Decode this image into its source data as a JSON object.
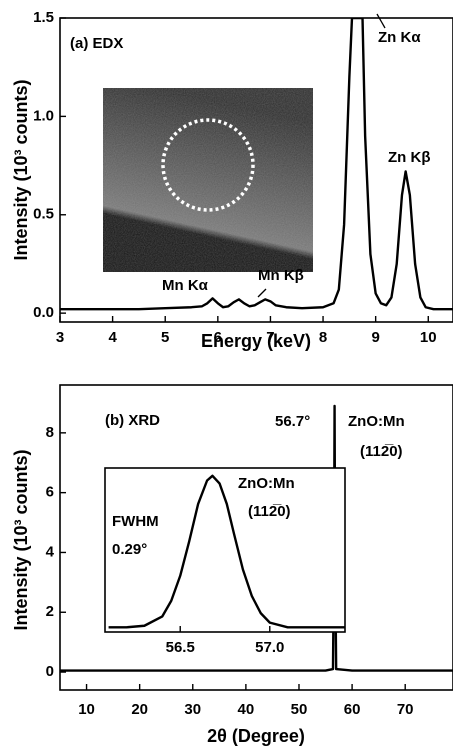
{
  "chart_data": [
    {
      "type": "line",
      "color": "#000000",
      "xlabel": "Energy (keV)",
      "ylabel": "Intensity (10³ counts)",
      "annotations": [
        "(a) EDX",
        "Zn Kα",
        "Zn Kβ",
        "Mn Kα",
        "Mn Kβ"
      ],
      "x": [
        3.0,
        3.5,
        4.0,
        4.5,
        5.0,
        5.5,
        5.7,
        5.8,
        5.9,
        6.0,
        6.1,
        6.2,
        6.3,
        6.4,
        6.5,
        6.6,
        6.7,
        6.8,
        6.9,
        7.0,
        7.1,
        7.3,
        7.6,
        8.0,
        8.2,
        8.3,
        8.4,
        8.5,
        8.55,
        8.75,
        8.8,
        8.9,
        9.0,
        9.1,
        9.2,
        9.3,
        9.4,
        9.5,
        9.57,
        9.65,
        9.75,
        9.85,
        9.95,
        10.1,
        10.47
      ],
      "values": [
        0.02,
        0.02,
        0.02,
        0.02,
        0.025,
        0.03,
        0.035,
        0.05,
        0.075,
        0.05,
        0.03,
        0.035,
        0.055,
        0.07,
        0.05,
        0.035,
        0.04,
        0.055,
        0.07,
        0.06,
        0.04,
        0.03,
        0.025,
        0.03,
        0.05,
        0.12,
        0.45,
        1.2,
        1.5,
        1.5,
        0.9,
        0.3,
        0.1,
        0.05,
        0.04,
        0.08,
        0.25,
        0.6,
        0.72,
        0.6,
        0.25,
        0.08,
        0.03,
        0.02,
        0.02
      ],
      "xlim": [
        3,
        10.47
      ],
      "ylim": [
        -0.045,
        1.5
      ],
      "xticks": [
        3,
        4,
        5,
        6,
        7,
        8,
        9,
        10
      ],
      "yticks": [
        {
          "value": 0,
          "label": "0.0"
        },
        {
          "value": 0.5,
          "label": "0.5"
        },
        {
          "value": 1,
          "label": "1.0"
        },
        {
          "value": 1.5,
          "label": "1.5"
        }
      ]
    },
    {
      "type": "line",
      "color": "#000000",
      "xlabel": "2θ (Degree)",
      "ylabel": "Intensity (10³ counts)",
      "annotations": [
        "(b) XRD",
        "56.7°",
        "ZnO:Mn",
        "(112̅0)"
      ],
      "x": [
        5,
        20,
        40,
        55,
        56.4,
        56.6,
        56.7,
        56.8,
        57.0,
        60,
        79
      ],
      "values": [
        0.05,
        0.05,
        0.05,
        0.05,
        0.1,
        4,
        8.9,
        4,
        0.1,
        0.05,
        0.05
      ],
      "xlim": [
        5,
        79
      ],
      "ylim": [
        -0.6,
        9.6
      ],
      "xticks": [
        10,
        20,
        30,
        40,
        50,
        60,
        70
      ],
      "yticks": [
        0,
        2,
        4,
        6,
        8
      ]
    },
    {
      "type": "line",
      "color": "#000000",
      "annotations": [
        "ZnO:Mn",
        "(112̅0)",
        "FWHM",
        "0.29°"
      ],
      "x": [
        56.1,
        56.2,
        56.3,
        56.4,
        56.45,
        56.5,
        56.55,
        56.6,
        56.65,
        56.68,
        56.72,
        56.76,
        56.8,
        56.85,
        56.9,
        56.95,
        57.0,
        57.1,
        57.2,
        57.3,
        57.42
      ],
      "values": [
        0.03,
        0.03,
        0.04,
        0.1,
        0.2,
        0.36,
        0.58,
        0.82,
        0.97,
        1.0,
        0.95,
        0.82,
        0.63,
        0.4,
        0.23,
        0.12,
        0.06,
        0.03,
        0.03,
        0.03,
        0.03
      ],
      "xlim": [
        56.08,
        57.42
      ],
      "ylim": [
        0,
        1.05
      ],
      "xticks": [
        56.5,
        {
          "value": 57,
          "label": "57.0"
        }
      ]
    }
  ]
}
